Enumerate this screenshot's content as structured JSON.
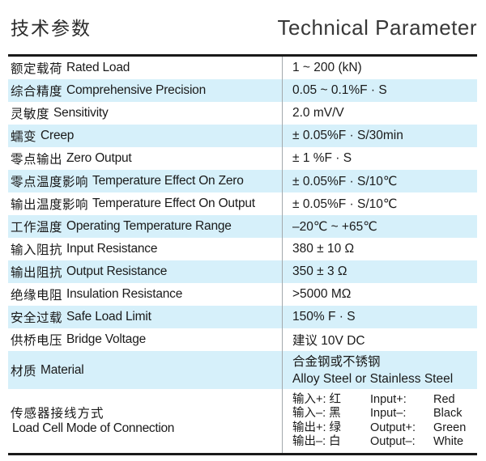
{
  "header": {
    "title_zh": "技术参数",
    "title_en": "Technical Parameter"
  },
  "table": {
    "rows": [
      {
        "label_zh": "额定载荷",
        "label_en": "Rated Load",
        "value": "1 ~ 200 (kN)"
      },
      {
        "label_zh": "综合精度",
        "label_en": "Comprehensive Precision",
        "value": "0.05 ~ 0.1%F · S"
      },
      {
        "label_zh": "灵敏度",
        "label_en": "Sensitivity",
        "value": "2.0 mV/V"
      },
      {
        "label_zh": "蠕变",
        "label_en": "Creep",
        "value": "± 0.05%F · S/30min"
      },
      {
        "label_zh": "零点输出",
        "label_en": "Zero Output",
        "value": "± 1 %F · S"
      },
      {
        "label_zh": "零点温度影响",
        "label_en": "Temperature Effect On Zero",
        "value": "± 0.05%F · S/10℃"
      },
      {
        "label_zh": "输出温度影响",
        "label_en": "Temperature Effect On Output",
        "value": "± 0.05%F · S/10℃"
      },
      {
        "label_zh": "工作温度",
        "label_en": "Operating Temperature Range",
        "value": "–20℃ ~ +65℃"
      },
      {
        "label_zh": "输入阻抗",
        "label_en": "Input Resistance",
        "value": "380 ± 10 Ω"
      },
      {
        "label_zh": "输出阻抗",
        "label_en": "Output Resistance",
        "value": "350 ± 3 Ω"
      },
      {
        "label_zh": "绝缘电阻",
        "label_en": "Insulation Resistance",
        "value": ">5000 MΩ"
      },
      {
        "label_zh": "安全过载",
        "label_en": "Safe Load Limit",
        "value": "150% F · S"
      },
      {
        "label_zh": "供桥电压",
        "label_en": "Bridge Voltage",
        "value": "建议 10V DC"
      }
    ],
    "material": {
      "label_zh": "材质",
      "label_en": "Material",
      "value_zh": "合金钢或不锈钢",
      "value_en": "Alloy Steel or Stainless Steel"
    },
    "connection": {
      "label_zh": "传感器接线方式",
      "label_en": "Load Cell Mode of Connection",
      "wires": [
        {
          "zh": "输入+: 红",
          "en_label": "Input+:",
          "en_color": "Red"
        },
        {
          "zh": "输入–: 黑",
          "en_label": "Input–:",
          "en_color": "Black"
        },
        {
          "zh": "输出+: 绿",
          "en_label": "Output+:",
          "en_color": "Green"
        },
        {
          "zh": "输出–: 白",
          "en_label": "Output–:",
          "en_color": "White"
        }
      ]
    }
  },
  "colors": {
    "band": "#d6f0fa",
    "rule": "#1a1a1a",
    "divider": "#a3a9ac",
    "text": "#1a1a1a"
  }
}
